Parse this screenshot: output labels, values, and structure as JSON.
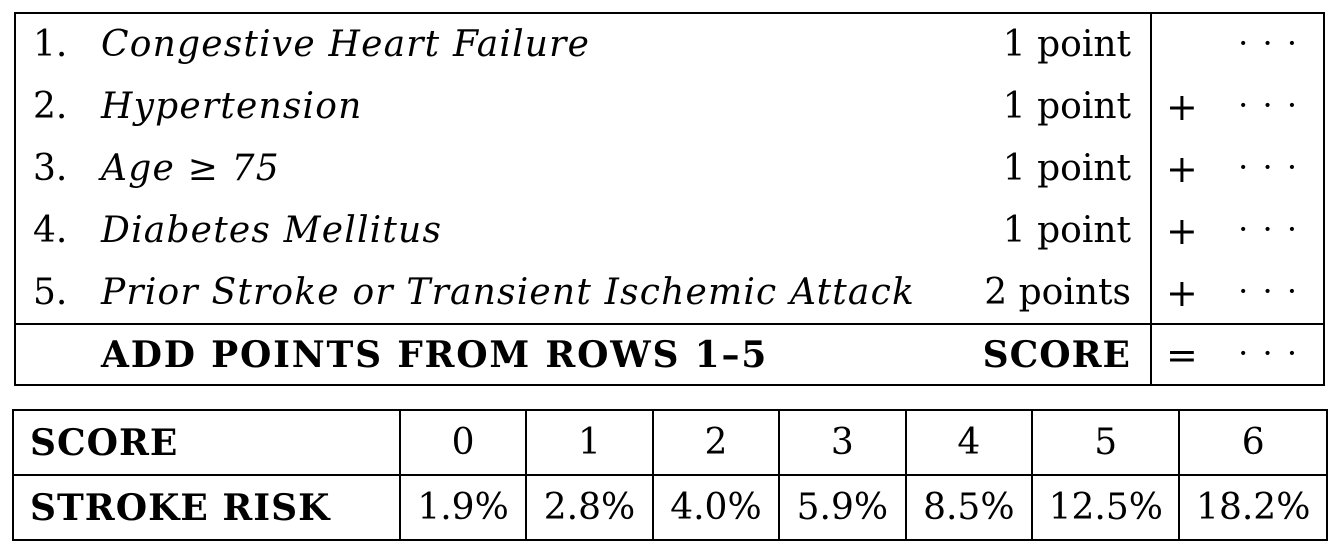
{
  "score_table": {
    "rows": [
      {
        "num": "1.",
        "label": "Congestive Heart Failure",
        "points": "1 point",
        "op": "",
        "value": "· · ·"
      },
      {
        "num": "2.",
        "label": "Hypertension",
        "points": "1 point",
        "op": "+",
        "value": "· · ·"
      },
      {
        "num": "3.",
        "label": "Age ≥ 75",
        "points": "1 point",
        "op": "+",
        "value": "· · ·"
      },
      {
        "num": "4.",
        "label": "Diabetes Mellitus",
        "points": "1 point",
        "op": "+",
        "value": "· · ·"
      },
      {
        "num": "5.",
        "label": "Prior Stroke or Transient Ischemic Attack",
        "points": "2 points",
        "op": "+",
        "value": "· · ·"
      }
    ],
    "total": {
      "label": "ADD POINTS FROM ROWS 1–5",
      "score_label": "SCORE",
      "op": "=",
      "value": "· · ·"
    }
  },
  "risk_table": {
    "score_header": "SCORE",
    "risk_header": "STROKE RISK",
    "scores": [
      "0",
      "1",
      "2",
      "3",
      "4",
      "5",
      "6"
    ],
    "risks": [
      "1.9%",
      "2.8%",
      "4.0%",
      "5.9%",
      "8.5%",
      "12.5%",
      "18.2%"
    ]
  }
}
